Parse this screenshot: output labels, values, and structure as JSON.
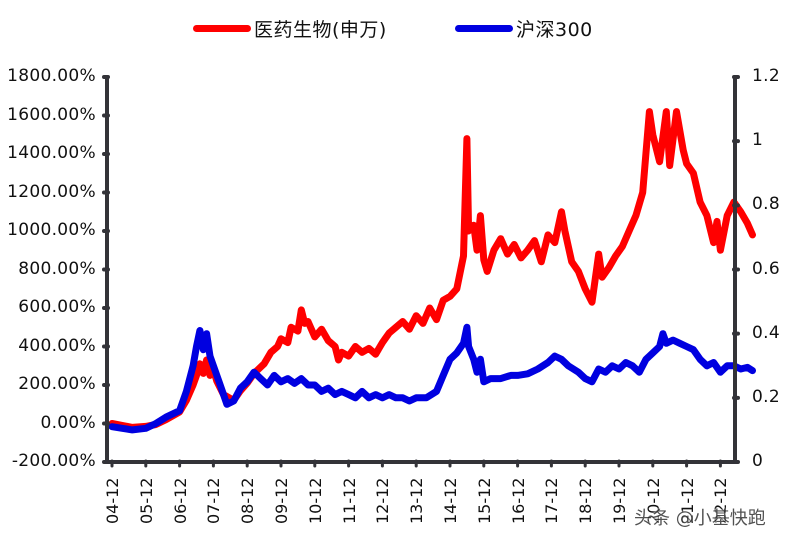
{
  "legend": {
    "items": [
      {
        "label": "医药生物(申万)",
        "color": "#ff0000"
      },
      {
        "label": "沪深300",
        "color": "#0000e0"
      }
    ]
  },
  "watermark": "头条 @小基快跑",
  "chart_data": {
    "type": "line",
    "title": "",
    "xlabel": "",
    "ylabel": "",
    "x_tick_labels": [
      "04-12",
      "05-12",
      "06-12",
      "07-12",
      "08-12",
      "09-12",
      "10-12",
      "11-12",
      "12-12",
      "13-12",
      "14-12",
      "15-12",
      "16-12",
      "17-12",
      "18-12",
      "19-12",
      "20-12",
      "21-12",
      "22-12"
    ],
    "left_axis": {
      "ticks": [
        "1800.00%",
        "1600.00%",
        "1400.00%",
        "1200.00%",
        "1000.00%",
        "800.00%",
        "600.00%",
        "400.00%",
        "200.00%",
        "0.00%",
        "-200.00%"
      ],
      "range": [
        -200,
        1800
      ],
      "unit": "%"
    },
    "right_axis": {
      "ticks": [
        "1.2",
        "1",
        "0.8",
        "0.6",
        "0.4",
        "0.2",
        "0"
      ],
      "range": [
        0,
        1.2
      ]
    },
    "grid": false,
    "legend_position": "top",
    "x_unit": "years since 2004-12",
    "series": [
      {
        "name": "医药生物(申万)",
        "axis": "left",
        "color": "#ff0000",
        "points": [
          [
            0,
            0
          ],
          [
            0.3,
            -10
          ],
          [
            0.6,
            -20
          ],
          [
            1.0,
            -15
          ],
          [
            1.3,
            -5
          ],
          [
            1.6,
            20
          ],
          [
            2.0,
            60
          ],
          [
            2.2,
            120
          ],
          [
            2.4,
            200
          ],
          [
            2.5,
            250
          ],
          [
            2.6,
            310
          ],
          [
            2.7,
            260
          ],
          [
            2.8,
            330
          ],
          [
            2.9,
            250
          ],
          [
            3.0,
            280
          ],
          [
            3.1,
            220
          ],
          [
            3.3,
            150
          ],
          [
            3.6,
            120
          ],
          [
            3.8,
            170
          ],
          [
            4.0,
            210
          ],
          [
            4.2,
            260
          ],
          [
            4.5,
            310
          ],
          [
            4.7,
            370
          ],
          [
            4.9,
            400
          ],
          [
            5.0,
            440
          ],
          [
            5.2,
            420
          ],
          [
            5.3,
            500
          ],
          [
            5.5,
            480
          ],
          [
            5.6,
            590
          ],
          [
            5.7,
            520
          ],
          [
            5.8,
            530
          ],
          [
            6.0,
            450
          ],
          [
            6.2,
            490
          ],
          [
            6.4,
            430
          ],
          [
            6.6,
            400
          ],
          [
            6.7,
            330
          ],
          [
            6.8,
            370
          ],
          [
            7.0,
            350
          ],
          [
            7.2,
            400
          ],
          [
            7.4,
            370
          ],
          [
            7.6,
            390
          ],
          [
            7.8,
            360
          ],
          [
            8.0,
            420
          ],
          [
            8.2,
            470
          ],
          [
            8.4,
            500
          ],
          [
            8.6,
            530
          ],
          [
            8.8,
            490
          ],
          [
            9.0,
            560
          ],
          [
            9.2,
            520
          ],
          [
            9.4,
            600
          ],
          [
            9.6,
            540
          ],
          [
            9.8,
            640
          ],
          [
            10.0,
            660
          ],
          [
            10.2,
            700
          ],
          [
            10.4,
            870
          ],
          [
            10.5,
            1480
          ],
          [
            10.55,
            1000
          ],
          [
            10.7,
            1030
          ],
          [
            10.8,
            900
          ],
          [
            10.9,
            1080
          ],
          [
            11.0,
            850
          ],
          [
            11.1,
            790
          ],
          [
            11.3,
            900
          ],
          [
            11.5,
            960
          ],
          [
            11.7,
            880
          ],
          [
            11.9,
            930
          ],
          [
            12.1,
            860
          ],
          [
            12.3,
            900
          ],
          [
            12.5,
            950
          ],
          [
            12.7,
            840
          ],
          [
            12.9,
            980
          ],
          [
            13.1,
            940
          ],
          [
            13.3,
            1100
          ],
          [
            13.4,
            1000
          ],
          [
            13.6,
            840
          ],
          [
            13.8,
            790
          ],
          [
            14.0,
            700
          ],
          [
            14.2,
            630
          ],
          [
            14.4,
            880
          ],
          [
            14.5,
            760
          ],
          [
            14.7,
            810
          ],
          [
            14.9,
            870
          ],
          [
            15.1,
            920
          ],
          [
            15.3,
            1000
          ],
          [
            15.5,
            1080
          ],
          [
            15.7,
            1200
          ],
          [
            15.9,
            1620
          ],
          [
            16.0,
            1500
          ],
          [
            16.2,
            1360
          ],
          [
            16.4,
            1620
          ],
          [
            16.5,
            1340
          ],
          [
            16.7,
            1620
          ],
          [
            16.9,
            1420
          ],
          [
            17.0,
            1350
          ],
          [
            17.2,
            1300
          ],
          [
            17.4,
            1150
          ],
          [
            17.6,
            1080
          ],
          [
            17.8,
            940
          ],
          [
            17.9,
            1050
          ],
          [
            18.0,
            900
          ],
          [
            18.2,
            1080
          ],
          [
            18.4,
            1150
          ],
          [
            18.6,
            1100
          ],
          [
            18.8,
            1040
          ],
          [
            18.95,
            980
          ]
        ]
      },
      {
        "name": "沪深300",
        "axis": "right",
        "color": "#0000e0",
        "points": [
          [
            0,
            0.11
          ],
          [
            0.3,
            0.105
          ],
          [
            0.6,
            0.1
          ],
          [
            1.0,
            0.105
          ],
          [
            1.3,
            0.12
          ],
          [
            1.6,
            0.14
          ],
          [
            2.0,
            0.16
          ],
          [
            2.2,
            0.22
          ],
          [
            2.4,
            0.3
          ],
          [
            2.5,
            0.36
          ],
          [
            2.6,
            0.41
          ],
          [
            2.7,
            0.35
          ],
          [
            2.8,
            0.4
          ],
          [
            2.9,
            0.33
          ],
          [
            3.0,
            0.3
          ],
          [
            3.2,
            0.24
          ],
          [
            3.4,
            0.18
          ],
          [
            3.6,
            0.19
          ],
          [
            3.8,
            0.23
          ],
          [
            4.0,
            0.25
          ],
          [
            4.2,
            0.28
          ],
          [
            4.4,
            0.26
          ],
          [
            4.6,
            0.24
          ],
          [
            4.8,
            0.27
          ],
          [
            5.0,
            0.25
          ],
          [
            5.2,
            0.26
          ],
          [
            5.4,
            0.245
          ],
          [
            5.6,
            0.26
          ],
          [
            5.8,
            0.24
          ],
          [
            6.0,
            0.24
          ],
          [
            6.2,
            0.22
          ],
          [
            6.4,
            0.23
          ],
          [
            6.6,
            0.21
          ],
          [
            6.8,
            0.22
          ],
          [
            7.0,
            0.21
          ],
          [
            7.2,
            0.2
          ],
          [
            7.4,
            0.22
          ],
          [
            7.6,
            0.2
          ],
          [
            7.8,
            0.21
          ],
          [
            8.0,
            0.2
          ],
          [
            8.2,
            0.21
          ],
          [
            8.4,
            0.2
          ],
          [
            8.6,
            0.2
          ],
          [
            8.8,
            0.19
          ],
          [
            9.0,
            0.2
          ],
          [
            9.3,
            0.2
          ],
          [
            9.6,
            0.22
          ],
          [
            9.8,
            0.27
          ],
          [
            10.0,
            0.32
          ],
          [
            10.2,
            0.34
          ],
          [
            10.4,
            0.37
          ],
          [
            10.5,
            0.42
          ],
          [
            10.55,
            0.36
          ],
          [
            10.7,
            0.32
          ],
          [
            10.8,
            0.28
          ],
          [
            10.9,
            0.32
          ],
          [
            11.0,
            0.25
          ],
          [
            11.2,
            0.26
          ],
          [
            11.5,
            0.26
          ],
          [
            11.8,
            0.27
          ],
          [
            12.0,
            0.27
          ],
          [
            12.3,
            0.275
          ],
          [
            12.6,
            0.29
          ],
          [
            12.9,
            0.31
          ],
          [
            13.1,
            0.33
          ],
          [
            13.3,
            0.32
          ],
          [
            13.5,
            0.3
          ],
          [
            13.8,
            0.28
          ],
          [
            14.0,
            0.26
          ],
          [
            14.2,
            0.25
          ],
          [
            14.4,
            0.29
          ],
          [
            14.6,
            0.28
          ],
          [
            14.8,
            0.3
          ],
          [
            15.0,
            0.29
          ],
          [
            15.2,
            0.31
          ],
          [
            15.4,
            0.3
          ],
          [
            15.6,
            0.28
          ],
          [
            15.8,
            0.32
          ],
          [
            16.0,
            0.34
          ],
          [
            16.2,
            0.36
          ],
          [
            16.3,
            0.4
          ],
          [
            16.4,
            0.37
          ],
          [
            16.6,
            0.38
          ],
          [
            16.8,
            0.37
          ],
          [
            17.0,
            0.36
          ],
          [
            17.2,
            0.35
          ],
          [
            17.4,
            0.32
          ],
          [
            17.6,
            0.3
          ],
          [
            17.8,
            0.31
          ],
          [
            18.0,
            0.28
          ],
          [
            18.2,
            0.3
          ],
          [
            18.4,
            0.3
          ],
          [
            18.6,
            0.29
          ],
          [
            18.8,
            0.295
          ],
          [
            18.95,
            0.285
          ]
        ]
      }
    ]
  }
}
